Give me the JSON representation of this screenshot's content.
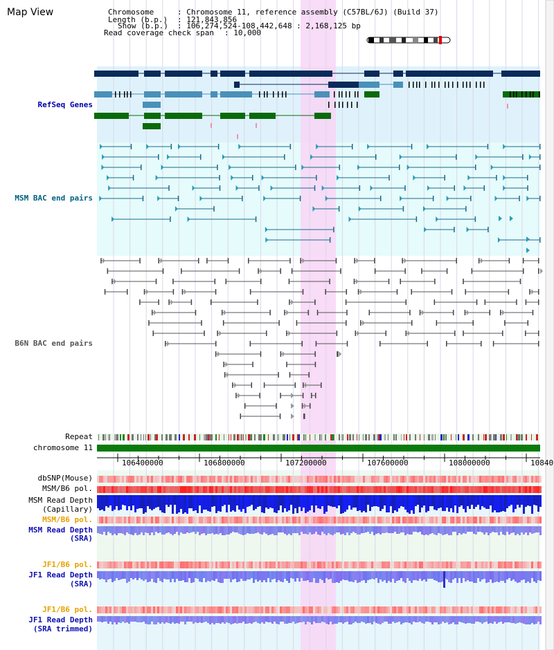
{
  "title": "Map View",
  "info": {
    "chromosome_key": "Chromosome",
    "chromosome_val": ": Chromosome 11, reference assembly (C57BL/6J) (Build 37)",
    "length_key": "Length (b.p.)",
    "length_val": ": 121,843,856",
    "show_key": "Show (b.p.)",
    "show_val": ": 106,274,524-108,442,648 : 2,168,125 bp",
    "coverage_key": "Read coverage check span",
    "coverage_val": ": 10,000"
  },
  "tracks": {
    "refseq": "RefSeq Genes",
    "msm_bac": "MSM BAC end pairs",
    "b6n_bac": "B6N BAC end pairs",
    "repeat": "Repeat",
    "chromosome": "chromosome 11",
    "dbsnp": "dbSNP(Mouse)",
    "msm_b6_pol_1": "MSM/B6 pol.",
    "msm_depth_cap_1": "MSM Read Depth",
    "msm_depth_cap_2": "(Capillary)",
    "msm_b6_pol_2": "MSM/B6 pol.",
    "msm_depth_sra_1": "MSM Read Depth",
    "msm_depth_sra_2": "(SRA)",
    "jf1_b6_pol_1": "JF1/B6 pol.",
    "jf1_depth_sra_1": "JF1 Read Depth",
    "jf1_depth_sra_2": "(SRA)",
    "jf1_b6_pol_2": "JF1/B6 pol.",
    "jf1_depth_trim_1": "JF1 Read Depth",
    "jf1_depth_trim_2": "(SRA trimmed)"
  },
  "axis_ticks": [
    "106400000",
    "106800000",
    "107200000",
    "107600000",
    "108000000",
    "10840"
  ],
  "colors": {
    "refseq_bg": "#dff2fc",
    "msm_bg": "#e6fbfb",
    "highlight": "#f8d6f6",
    "gene_dark": "#0a2a5a",
    "gene_mid": "#4a90b8",
    "gene_green": "#0a6a0a",
    "chromosome_bar": "#0a7a0a"
  }
}
